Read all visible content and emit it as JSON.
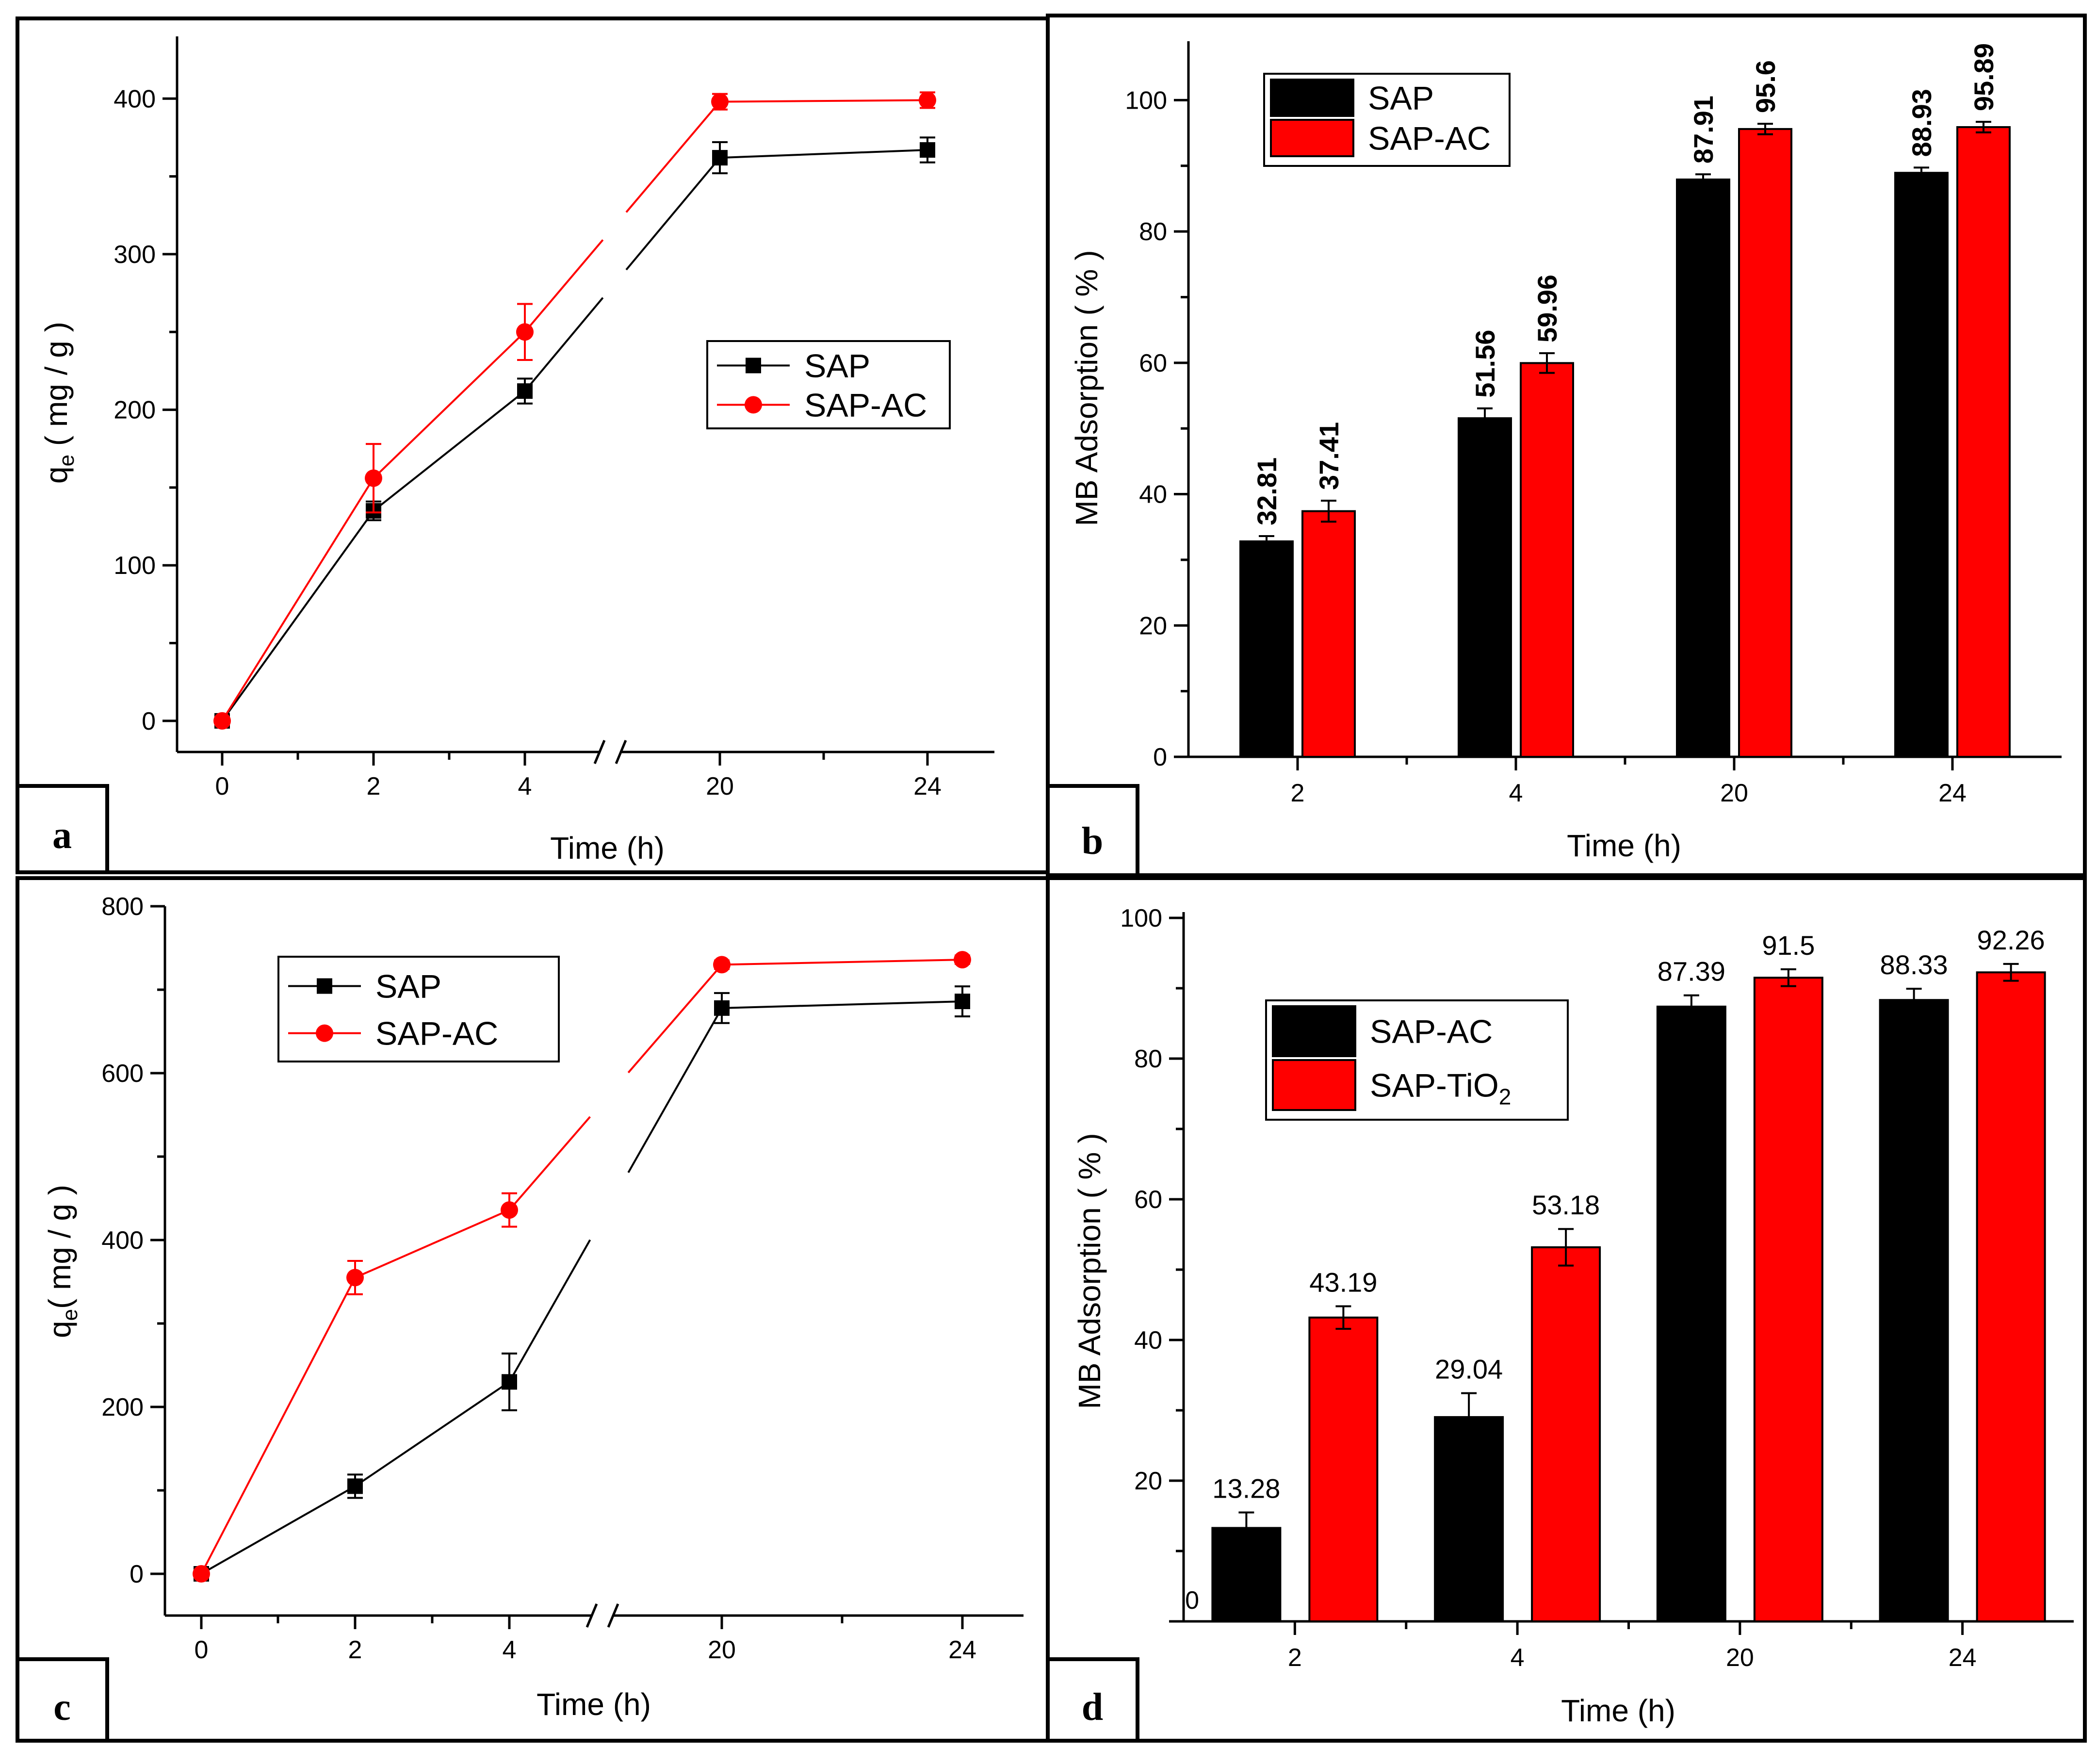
{
  "chart_data": [
    {
      "panel": "a",
      "type": "line",
      "x": [
        0,
        2,
        4,
        20,
        24
      ],
      "x_tick_labels": [
        "0",
        "2",
        "4",
        "20",
        "24"
      ],
      "series": [
        {
          "name": "SAP",
          "values": [
            0,
            135,
            212,
            362,
            367
          ],
          "errors": [
            0,
            6,
            8,
            10,
            8
          ],
          "color": "#000000",
          "marker": "square"
        },
        {
          "name": "SAP-AC",
          "values": [
            0,
            156,
            250,
            398,
            399
          ],
          "errors": [
            0,
            22,
            18,
            5,
            5
          ],
          "color": "#ff0000",
          "marker": "circle"
        }
      ],
      "xlabel": "Time (h)",
      "ylabel": "q",
      "ylabel_sub": "e",
      "ylabel_unit": " ( mg / g )",
      "ylim": [
        -20,
        440
      ],
      "yticks": [
        0,
        100,
        200,
        300,
        400
      ],
      "axis_break": true,
      "legend_position": "center-right"
    },
    {
      "panel": "b",
      "type": "bar",
      "categories": [
        "2",
        "4",
        "20",
        "24"
      ],
      "series": [
        {
          "name": "SAP",
          "values": [
            32.81,
            51.56,
            87.91,
            88.93
          ],
          "value_labels": [
            "32.81",
            "51.56",
            "87.91",
            "88.93"
          ],
          "errors": [
            0.8,
            1.5,
            0.8,
            0.8
          ],
          "color": "#000000"
        },
        {
          "name": "SAP-AC",
          "values": [
            37.41,
            59.96,
            95.6,
            95.89
          ],
          "value_labels": [
            "37.41",
            "59.96",
            "95.6",
            "95.89"
          ],
          "errors": [
            1.6,
            1.5,
            0.8,
            0.8
          ],
          "color": "#ff0000"
        }
      ],
      "xlabel": "Time (h)",
      "ylabel": "MB Adsorption ( % )",
      "ylim": [
        0,
        110
      ],
      "yticks": [
        0,
        20,
        40,
        60,
        80,
        100
      ],
      "legend_position": "top-left",
      "label_style": "bold-vertical"
    },
    {
      "panel": "c",
      "type": "line",
      "x": [
        0,
        2,
        4,
        20,
        24
      ],
      "x_tick_labels": [
        "0",
        "2",
        "4",
        "20",
        "24"
      ],
      "series": [
        {
          "name": "SAP",
          "values": [
            0,
            105,
            230,
            678,
            686
          ],
          "errors": [
            0,
            14,
            34,
            18,
            18
          ],
          "color": "#000000",
          "marker": "square"
        },
        {
          "name": "SAP-AC",
          "values": [
            0,
            355,
            436,
            730,
            736
          ],
          "errors": [
            0,
            20,
            20,
            5,
            5
          ],
          "color": "#ff0000",
          "marker": "circle"
        }
      ],
      "xlabel": "Time (h)",
      "ylabel": "q",
      "ylabel_sub": "e",
      "ylabel_unit": "( mg / g )",
      "ylim": [
        -50,
        800
      ],
      "yticks": [
        0,
        200,
        400,
        600,
        800
      ],
      "axis_break": true,
      "legend_position": "top-left"
    },
    {
      "panel": "d",
      "type": "bar",
      "categories": [
        "2",
        "4",
        "20",
        "24"
      ],
      "series": [
        {
          "name": "SAP-AC",
          "values": [
            13.28,
            29.04,
            87.39,
            88.33
          ],
          "value_labels": [
            "13.28",
            "29.04",
            "87.39",
            "88.33"
          ],
          "errors": [
            2.2,
            3.4,
            1.6,
            1.6
          ],
          "color": "#000000"
        },
        {
          "name": "SAP-TiO2",
          "legend_main": "SAP-TiO",
          "legend_sub": "2",
          "values": [
            43.19,
            53.18,
            91.5,
            92.26
          ],
          "value_labels": [
            "43.19",
            "53.18",
            "91.5",
            "92.26"
          ],
          "errors": [
            1.6,
            2.6,
            1.2,
            1.2
          ],
          "color": "#ff0000"
        }
      ],
      "xlabel": "Time (h)",
      "ylabel": "MB Adsorption ( % )",
      "ylim": [
        0,
        100
      ],
      "yticks": [
        0,
        20,
        40,
        60,
        80,
        100
      ],
      "y_tick_labels": [
        "0",
        "20",
        "40",
        "60",
        "80",
        "100"
      ],
      "legend_position": "top-left",
      "label_style": "horizontal"
    }
  ],
  "panel_tags": [
    "a",
    "b",
    "c",
    "d"
  ]
}
